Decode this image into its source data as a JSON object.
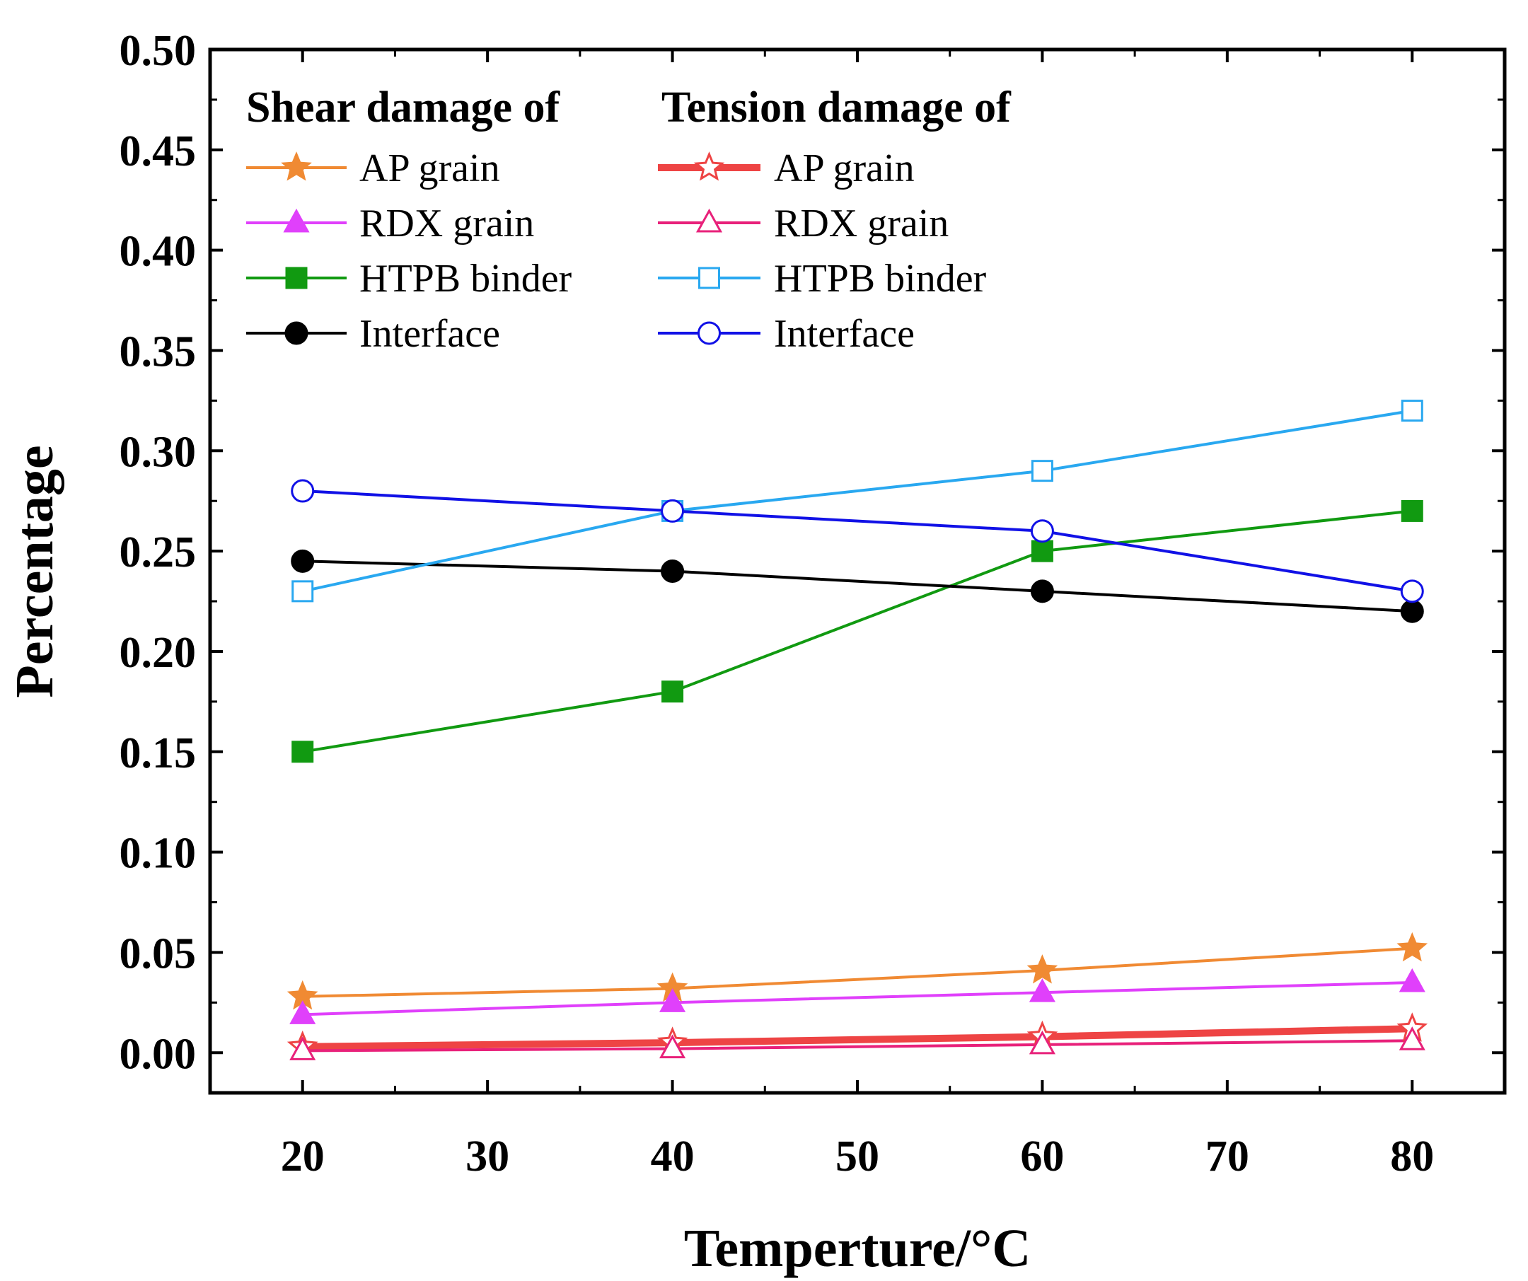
{
  "chart_data": {
    "type": "line",
    "title": "",
    "xlabel": "Temperture/°C",
    "ylabel": "Percentage",
    "xlim": [
      15,
      85
    ],
    "ylim": [
      -0.02,
      0.5
    ],
    "x_ticks": [
      20,
      30,
      40,
      50,
      60,
      70,
      80
    ],
    "x_tick_labels": [
      "20",
      "30",
      "40",
      "50",
      "60",
      "70",
      "80"
    ],
    "y_ticks": [
      0.0,
      0.05,
      0.1,
      0.15,
      0.2,
      0.25,
      0.3,
      0.35,
      0.4,
      0.45,
      0.5
    ],
    "y_tick_labels": [
      "0.00",
      "0.05",
      "0.10",
      "0.15",
      "0.20",
      "0.25",
      "0.30",
      "0.35",
      "0.40",
      "0.45",
      "0.50"
    ],
    "grid": false,
    "legend": {
      "placement": "top-left",
      "groups": [
        "Shear damage of",
        "Tension damage of"
      ]
    },
    "x": [
      20,
      40,
      60,
      80
    ],
    "series": [
      {
        "name": "AP grain",
        "group": "Shear damage of",
        "color": "#F08A33",
        "marker": "star",
        "filled": true,
        "values": [
          0.028,
          0.032,
          0.041,
          0.052
        ]
      },
      {
        "name": "RDX grain",
        "group": "Shear damage of",
        "color": "#E040FB",
        "marker": "triangle",
        "filled": true,
        "values": [
          0.019,
          0.025,
          0.03,
          0.035
        ]
      },
      {
        "name": "HTPB binder",
        "group": "Shear damage of",
        "color": "#119A11",
        "marker": "square",
        "filled": true,
        "values": [
          0.15,
          0.18,
          0.25,
          0.27
        ]
      },
      {
        "name": "Interface",
        "group": "Shear damage of",
        "color": "#000000",
        "marker": "circle",
        "filled": true,
        "values": [
          0.245,
          0.24,
          0.23,
          0.22
        ]
      },
      {
        "name": "AP grain",
        "group": "Tension damage of",
        "color": "#EE4444",
        "marker": "star",
        "filled": false,
        "values": [
          0.003,
          0.005,
          0.008,
          0.012
        ]
      },
      {
        "name": "RDX grain",
        "group": "Tension damage of",
        "color": "#E8217A",
        "marker": "triangle",
        "filled": false,
        "values": [
          0.001,
          0.002,
          0.004,
          0.006
        ]
      },
      {
        "name": "HTPB binder",
        "group": "Tension damage of",
        "color": "#29A8F0",
        "marker": "square",
        "filled": false,
        "values": [
          0.23,
          0.27,
          0.29,
          0.32
        ]
      },
      {
        "name": "Interface",
        "group": "Tension damage of",
        "color": "#1111E6",
        "marker": "circle",
        "filled": false,
        "values": [
          0.28,
          0.27,
          0.26,
          0.23
        ]
      }
    ]
  }
}
